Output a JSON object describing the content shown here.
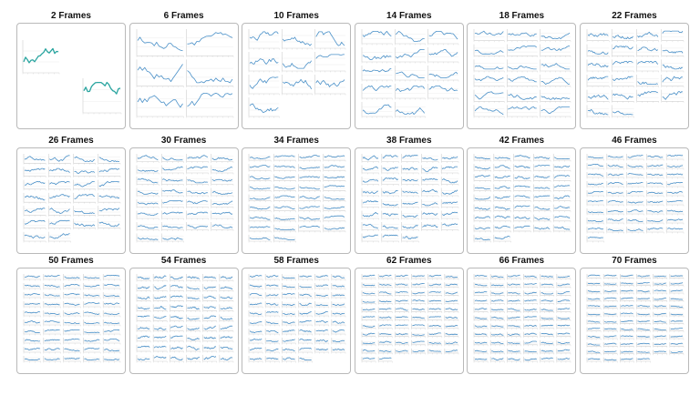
{
  "figure": {
    "panels": [
      {
        "title": "2 Frames",
        "frames": 2
      },
      {
        "title": "6 Frames",
        "frames": 6
      },
      {
        "title": "10 Frames",
        "frames": 10
      },
      {
        "title": "14 Frames",
        "frames": 14
      },
      {
        "title": "18 Frames",
        "frames": 18
      },
      {
        "title": "22 Frames",
        "frames": 22
      },
      {
        "title": "26 Frames",
        "frames": 26
      },
      {
        "title": "30 Frames",
        "frames": 30
      },
      {
        "title": "34 Frames",
        "frames": 34
      },
      {
        "title": "38 Frames",
        "frames": 38
      },
      {
        "title": "42 Frames",
        "frames": 42
      },
      {
        "title": "46 Frames",
        "frames": 46
      },
      {
        "title": "50 Frames",
        "frames": 50
      },
      {
        "title": "54 Frames",
        "frames": 54
      },
      {
        "title": "58 Frames",
        "frames": 58
      },
      {
        "title": "62 Frames",
        "frames": 62
      },
      {
        "title": "66 Frames",
        "frames": 66
      },
      {
        "title": "70 Frames",
        "frames": 70
      }
    ]
  },
  "chart_data": {
    "type": "line",
    "frame_counts": [
      2,
      6,
      10,
      14,
      18,
      22,
      26,
      30,
      34,
      38,
      42,
      46,
      50,
      54,
      58,
      62,
      66,
      70
    ],
    "line_color": "#4a90c8",
    "line_color_2frames": "#2aa5a0",
    "grid": true,
    "panel_border_color": "#b9b9b9"
  }
}
